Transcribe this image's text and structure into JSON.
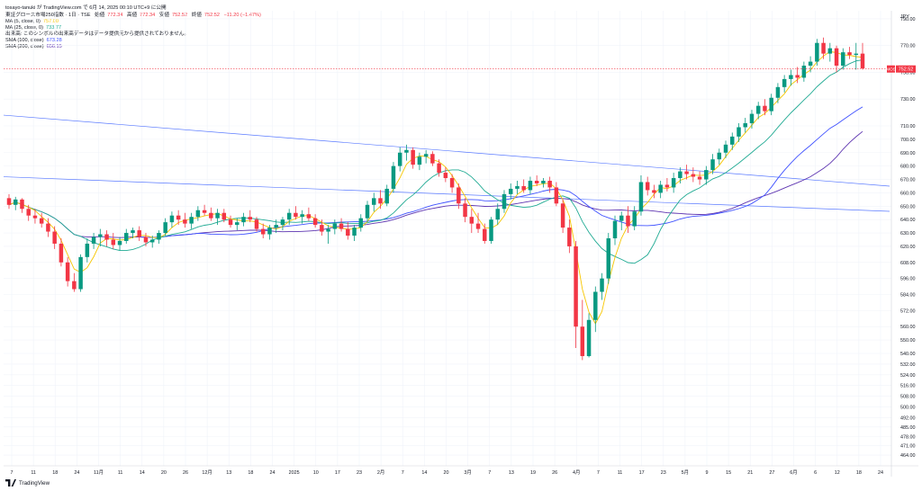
{
  "credit": "tosayo-tanuki が TradingView.com で 6月 14, 2025 00:10 UTC+9 に公開",
  "header": {
    "symbol": "東証グロース市場250指数 · 1日 · TSE",
    "open_label": "始値",
    "open": "772.34",
    "high_label": "高値",
    "high": "772.34",
    "low_label": "安値",
    "low": "752.52",
    "close_label": "終値",
    "close": "752.52",
    "change": "−11.20 (−1.47%)",
    "indicators": [
      {
        "label": "MA (5, close, 0)",
        "value": "757.00",
        "color": "#f7c600"
      },
      {
        "label": "MA (25, close, 0)",
        "value": "733.77",
        "color": "#22ab94"
      },
      {
        "label": "出来高: このシンボルの出来高データはデータ提供元から提供されておりません。",
        "value": "",
        "color": "#131722"
      },
      {
        "label": "SMA (100, close)",
        "value": "673.28",
        "color": "#3f51ff"
      },
      {
        "label": "SMA (200, close)",
        "value": "656.15",
        "color": "#5e35b1"
      }
    ]
  },
  "currency": "JPY",
  "logo_text": "TradingView",
  "colors": {
    "up": "#089981",
    "down": "#f23645",
    "ma5": "#f7c600",
    "ma25": "#22ab94",
    "sma100": "#3f51ff",
    "sma200": "#5e35b1",
    "trend": "#5b7bff",
    "grid": "#f0f3fa"
  },
  "chart_data": {
    "type": "candlestick",
    "ylim": [
      456,
      796
    ],
    "y_ticks": [
      790,
      770,
      750,
      730,
      710,
      700,
      690,
      680,
      670,
      660,
      650,
      640,
      630,
      620,
      608,
      596,
      584,
      572,
      560,
      550,
      540,
      532,
      524,
      516,
      508,
      500,
      492,
      485,
      478,
      471,
      464
    ],
    "x_tick_labels": [
      "7",
      "11",
      "18",
      "24",
      "11月",
      "11",
      "14",
      "20",
      "26",
      "12月",
      "13",
      "18",
      "24",
      "2025",
      "10",
      "17",
      "23",
      "2月",
      "7",
      "14",
      "20",
      "3月",
      "7",
      "13",
      "19",
      "26",
      "4月",
      "7",
      "11",
      "17",
      "23",
      "5月",
      "9",
      "15",
      "21",
      "27",
      "6月",
      "6",
      "12",
      "18",
      "24"
    ],
    "last_price": "752.52",
    "last_price_label": "MOS",
    "candles": [
      [
        656,
        659,
        648,
        651
      ],
      [
        651,
        657,
        647,
        655
      ],
      [
        655,
        656,
        645,
        648
      ],
      [
        648,
        651,
        639,
        643
      ],
      [
        643,
        648,
        637,
        641
      ],
      [
        641,
        645,
        634,
        637
      ],
      [
        637,
        641,
        627,
        631
      ],
      [
        631,
        635,
        618,
        622
      ],
      [
        622,
        626,
        605,
        608
      ],
      [
        608,
        612,
        590,
        594
      ],
      [
        594,
        600,
        586,
        588
      ],
      [
        588,
        614,
        586,
        612
      ],
      [
        612,
        626,
        608,
        622
      ],
      [
        622,
        630,
        618,
        627
      ],
      [
        627,
        633,
        620,
        629
      ],
      [
        629,
        632,
        620,
        625
      ],
      [
        625,
        630,
        618,
        621
      ],
      [
        621,
        627,
        617,
        624
      ],
      [
        624,
        633,
        622,
        630
      ],
      [
        630,
        634,
        626,
        632
      ],
      [
        632,
        635,
        624,
        627
      ],
      [
        627,
        630,
        620,
        623
      ],
      [
        623,
        628,
        619,
        625
      ],
      [
        625,
        632,
        622,
        630
      ],
      [
        630,
        641,
        628,
        638
      ],
      [
        638,
        646,
        634,
        643
      ],
      [
        643,
        647,
        636,
        640
      ],
      [
        640,
        645,
        634,
        637
      ],
      [
        637,
        645,
        633,
        642
      ],
      [
        642,
        650,
        639,
        647
      ],
      [
        647,
        651,
        643,
        645
      ],
      [
        645,
        649,
        639,
        641
      ],
      [
        641,
        648,
        636,
        645
      ],
      [
        645,
        648,
        638,
        640
      ],
      [
        640,
        643,
        634,
        636
      ],
      [
        636,
        641,
        632,
        638
      ],
      [
        638,
        645,
        635,
        642
      ],
      [
        642,
        647,
        638,
        640
      ],
      [
        640,
        642,
        631,
        633
      ],
      [
        633,
        637,
        626,
        629
      ],
      [
        629,
        636,
        625,
        634
      ],
      [
        634,
        640,
        630,
        636
      ],
      [
        636,
        642,
        632,
        640
      ],
      [
        640,
        648,
        636,
        645
      ],
      [
        645,
        650,
        640,
        642
      ],
      [
        642,
        647,
        637,
        644
      ],
      [
        644,
        649,
        639,
        641
      ],
      [
        641,
        644,
        634,
        636
      ],
      [
        636,
        640,
        628,
        631
      ],
      [
        631,
        636,
        622,
        633
      ],
      [
        633,
        640,
        629,
        637
      ],
      [
        637,
        641,
        631,
        633
      ],
      [
        633,
        638,
        625,
        628
      ],
      [
        628,
        636,
        624,
        634
      ],
      [
        634,
        644,
        631,
        641
      ],
      [
        641,
        654,
        638,
        651
      ],
      [
        651,
        660,
        646,
        656
      ],
      [
        656,
        662,
        648,
        652
      ],
      [
        652,
        666,
        650,
        663
      ],
      [
        663,
        683,
        660,
        680
      ],
      [
        680,
        694,
        676,
        690
      ],
      [
        690,
        696,
        684,
        692
      ],
      [
        692,
        694,
        678,
        681
      ],
      [
        681,
        690,
        677,
        687
      ],
      [
        687,
        692,
        682,
        689
      ],
      [
        689,
        691,
        680,
        682
      ],
      [
        682,
        685,
        672,
        675
      ],
      [
        675,
        679,
        668,
        671
      ],
      [
        671,
        674,
        660,
        664
      ],
      [
        664,
        667,
        648,
        652
      ],
      [
        652,
        656,
        638,
        642
      ],
      [
        642,
        648,
        630,
        637
      ],
      [
        637,
        645,
        630,
        633
      ],
      [
        633,
        637,
        622,
        624
      ],
      [
        624,
        642,
        622,
        640
      ],
      [
        640,
        652,
        636,
        648
      ],
      [
        648,
        662,
        645,
        659
      ],
      [
        659,
        667,
        655,
        663
      ],
      [
        663,
        669,
        659,
        665
      ],
      [
        665,
        670,
        660,
        662
      ],
      [
        662,
        672,
        659,
        669
      ],
      [
        669,
        673,
        665,
        667
      ],
      [
        667,
        671,
        664,
        669
      ],
      [
        669,
        672,
        660,
        664
      ],
      [
        664,
        668,
        650,
        652
      ],
      [
        652,
        655,
        630,
        634
      ],
      [
        634,
        640,
        615,
        620
      ],
      [
        620,
        624,
        544,
        560
      ],
      [
        560,
        580,
        535,
        538
      ],
      [
        538,
        570,
        537,
        565
      ],
      [
        565,
        590,
        556,
        586
      ],
      [
        586,
        600,
        580,
        596
      ],
      [
        596,
        630,
        592,
        626
      ],
      [
        626,
        643,
        621,
        639
      ],
      [
        639,
        646,
        632,
        643
      ],
      [
        643,
        650,
        630,
        635
      ],
      [
        635,
        650,
        632,
        646
      ],
      [
        646,
        673,
        643,
        668
      ],
      [
        668,
        672,
        658,
        662
      ],
      [
        662,
        666,
        656,
        660
      ],
      [
        660,
        669,
        656,
        666
      ],
      [
        666,
        671,
        661,
        664
      ],
      [
        664,
        675,
        660,
        671
      ],
      [
        671,
        679,
        667,
        676
      ],
      [
        676,
        681,
        670,
        674
      ],
      [
        674,
        679,
        668,
        672
      ],
      [
        672,
        676,
        666,
        670
      ],
      [
        670,
        680,
        666,
        677
      ],
      [
        677,
        689,
        674,
        685
      ],
      [
        685,
        693,
        681,
        690
      ],
      [
        690,
        699,
        686,
        696
      ],
      [
        696,
        705,
        692,
        702
      ],
      [
        702,
        712,
        698,
        709
      ],
      [
        709,
        716,
        705,
        712
      ],
      [
        712,
        722,
        708,
        719
      ],
      [
        719,
        728,
        715,
        725
      ],
      [
        725,
        730,
        718,
        721
      ],
      [
        721,
        734,
        718,
        731
      ],
      [
        731,
        742,
        727,
        739
      ],
      [
        739,
        748,
        735,
        745
      ],
      [
        745,
        752,
        740,
        748
      ],
      [
        748,
        754,
        742,
        746
      ],
      [
        746,
        758,
        743,
        755
      ],
      [
        755,
        762,
        750,
        758
      ],
      [
        758,
        775,
        755,
        772
      ],
      [
        772,
        776,
        760,
        764
      ],
      [
        764,
        772,
        758,
        768
      ],
      [
        768,
        770,
        750,
        755
      ],
      [
        755,
        768,
        752,
        765
      ],
      [
        765,
        769,
        760,
        763
      ],
      [
        763,
        772,
        752,
        764
      ],
      [
        764,
        772,
        752,
        753
      ]
    ],
    "trendlines": [
      {
        "x": [
          0,
          200
        ],
        "y": [
          718,
          640
        ]
      },
      {
        "x": [
          0,
          200
        ],
        "y": [
          672,
          634
        ]
      }
    ]
  }
}
